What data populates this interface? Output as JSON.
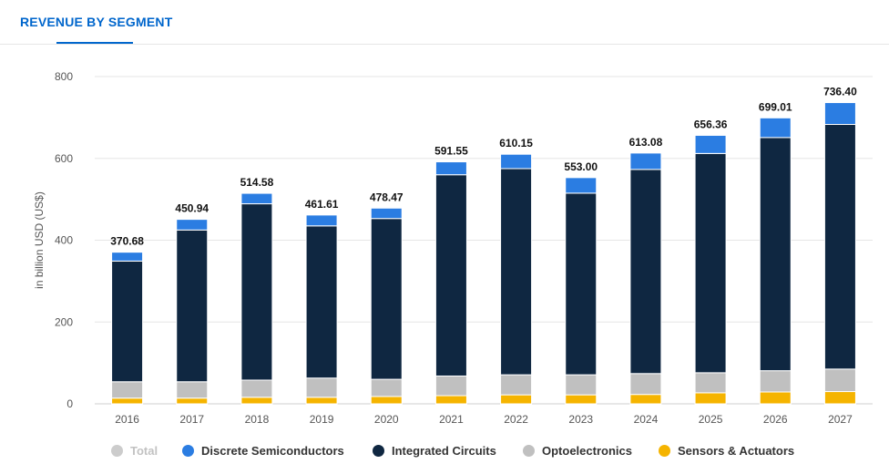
{
  "tab": {
    "label": "REVENUE BY SEGMENT"
  },
  "colors": {
    "total": "#cccccc",
    "discrete": "#2b7de2",
    "ic": "#0f2741",
    "opto": "#c0c0c0",
    "sensors": "#f5b400"
  },
  "legend": [
    {
      "label": "Total",
      "color": "#cccccc",
      "active": false
    },
    {
      "label": "Discrete Semiconductors",
      "color": "#2b7de2",
      "active": true
    },
    {
      "label": "Integrated Circuits",
      "color": "#0f2741",
      "active": true
    },
    {
      "label": "Optoelectronics",
      "color": "#c0c0c0",
      "active": true
    },
    {
      "label": "Sensors & Actuators",
      "color": "#f5b400",
      "active": true
    }
  ],
  "chart_data": {
    "type": "bar",
    "stacked": true,
    "ylabel": "in billion USD (US$)",
    "ylim": [
      0,
      800
    ],
    "yticks": [
      0,
      200,
      400,
      600,
      800
    ],
    "grid": true,
    "legend_position": "bottom",
    "categories": [
      "2016",
      "2017",
      "2018",
      "2019",
      "2020",
      "2021",
      "2022",
      "2023",
      "2024",
      "2025",
      "2026",
      "2027"
    ],
    "series": [
      {
        "name": "Sensors & Actuators",
        "color": "#f5b400",
        "values": [
          14,
          14,
          16,
          16,
          18,
          20,
          22,
          22,
          23,
          27,
          29,
          30
        ]
      },
      {
        "name": "Optoelectronics",
        "color": "#c0c0c0",
        "values": [
          40,
          40,
          42,
          47,
          42,
          48,
          49,
          49,
          51,
          49,
          52,
          55
        ]
      },
      {
        "name": "Integrated Circuits",
        "color": "#0f2741",
        "values": [
          295,
          371,
          431,
          372,
          393,
          492,
          504,
          444,
          499,
          536,
          570,
          598
        ]
      },
      {
        "name": "Discrete Semiconductors",
        "color": "#2b7de2",
        "values": [
          21.68,
          25.94,
          25.58,
          26.61,
          25.47,
          31.55,
          35.15,
          38.0,
          40.08,
          44.36,
          48.01,
          53.4
        ]
      }
    ],
    "totals": [
      370.68,
      450.94,
      514.58,
      461.61,
      478.47,
      591.55,
      610.15,
      553.0,
      613.08,
      656.36,
      699.01,
      736.4
    ],
    "total_labels": [
      "370.68",
      "450.94",
      "514.58",
      "461.61",
      "478.47",
      "591.55",
      "610.15",
      "553.00",
      "613.08",
      "656.36",
      "699.01",
      "736.40"
    ]
  }
}
